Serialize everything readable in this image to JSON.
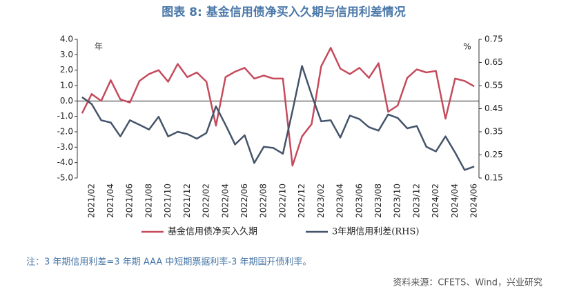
{
  "chart_data": {
    "type": "line",
    "title": "图表 8:  基金信用债净买入久期与信用利差情况",
    "y_unit": "年",
    "y2_unit": "%",
    "categories": [
      null,
      "2021/02",
      null,
      "2021/04",
      null,
      "2021/06",
      null,
      "2021/08",
      null,
      "2021/10",
      null,
      "2021/12",
      null,
      "2022/02",
      null,
      "2022/04",
      null,
      "2022/06",
      null,
      "2022/08",
      null,
      "2022/10",
      null,
      "2022/12",
      null,
      "2023/02",
      null,
      "2023/04",
      null,
      "2023/06",
      null,
      "2023/08",
      null,
      "2023/10",
      null,
      "2023/12",
      null,
      "2024/02",
      null,
      "2024/04",
      null,
      "2024/06"
    ],
    "series": [
      {
        "name": "基金信用债净买入久期",
        "color": "#c54a5c",
        "values": [
          -0.8,
          0.45,
          0.0,
          1.35,
          0.1,
          -0.1,
          1.3,
          1.75,
          2.0,
          1.25,
          2.4,
          1.55,
          1.85,
          1.25,
          -1.6,
          1.55,
          1.9,
          2.15,
          1.45,
          1.65,
          1.45,
          1.45,
          -4.2,
          -2.3,
          -1.5,
          2.25,
          3.45,
          2.1,
          1.75,
          2.15,
          1.5,
          2.45,
          -0.7,
          -0.3,
          1.5,
          2.05,
          1.85,
          1.95,
          -1.15,
          1.45,
          1.3,
          0.95
        ]
      },
      {
        "name": "3年期信用利差(RHS)",
        "color": "#44546a",
        "axis": "y2",
        "values": [
          0.5,
          0.47,
          0.4,
          0.39,
          0.33,
          0.4,
          0.38,
          0.36,
          0.415,
          0.33,
          0.35,
          0.34,
          0.32,
          0.345,
          0.46,
          0.38,
          0.295,
          0.335,
          0.215,
          0.285,
          0.28,
          0.255,
          0.44,
          0.635,
          0.51,
          0.395,
          0.4,
          0.325,
          0.42,
          0.405,
          0.37,
          0.355,
          0.425,
          0.41,
          0.365,
          0.375,
          0.285,
          0.265,
          0.33,
          0.26,
          0.185,
          0.2
        ]
      }
    ],
    "ylim": [
      -5,
      4
    ],
    "yticks": [
      {
        "value": 4,
        "label": "4.0"
      },
      {
        "value": 3,
        "label": "3.0"
      },
      {
        "value": 2,
        "label": "2.0"
      },
      {
        "value": 1,
        "label": "1.0"
      },
      {
        "value": 0,
        "label": "0.0"
      },
      {
        "value": -1,
        "label": "-1.0"
      },
      {
        "value": -2,
        "label": "-2.0"
      },
      {
        "value": -3,
        "label": "-3.0"
      },
      {
        "value": -4,
        "label": "-4.0"
      },
      {
        "value": -5,
        "label": "-5.0"
      }
    ],
    "y2lim": [
      0.15,
      0.75
    ],
    "y2ticks": [
      0.75,
      0.65,
      0.55,
      0.45,
      0.35,
      0.25,
      0.15
    ],
    "note": "注：3 年期信用利差=3 年期 AAA 中短期票据利率-3 年期国开债利率。",
    "source": "资料来源：CFETS、Wind，兴业研究"
  }
}
